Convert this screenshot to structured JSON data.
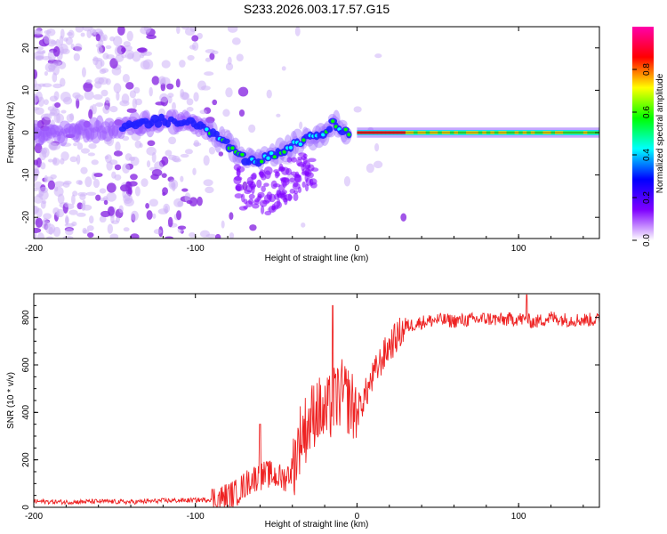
{
  "title": "S233.2026.003.17.57.G15",
  "chart_data": [
    {
      "type": "heatmap",
      "name": "spectrogram",
      "xlabel": "Height of straight line (km)",
      "ylabel": "Frequency (Hz)",
      "xlim": [
        -200,
        150
      ],
      "ylim": [
        -25,
        25
      ],
      "x_ticks": [
        -200,
        -100,
        0,
        100
      ],
      "y_ticks": [
        -20,
        -10,
        0,
        10,
        20
      ],
      "colorbar": {
        "label": "Normalized spectral amplitude",
        "range": [
          0,
          1
        ],
        "ticks": [
          "0.0",
          "0.2",
          "0.4",
          "0.6",
          "0.8"
        ],
        "colormap": [
          "#ffffff",
          "#7f00ff",
          "#0000ff",
          "#00ffff",
          "#00ff00",
          "#ffff00",
          "#ff0000",
          "#ff00aa"
        ]
      },
      "ridge": {
        "description_points_x": [
          -200,
          -150,
          -120,
          -100,
          -90,
          -80,
          -70,
          -65,
          -55,
          -45,
          -35,
          -25,
          -15,
          -5,
          0,
          20,
          50,
          90,
          105,
          150
        ],
        "freq_hz": [
          0,
          1,
          3,
          2,
          0,
          -3,
          -6,
          -7,
          -6,
          -4,
          -2,
          -1,
          2,
          0,
          0,
          0,
          0,
          0,
          0,
          0
        ]
      }
    },
    {
      "type": "line",
      "name": "snr",
      "xlabel": "Height of straight line (km)",
      "ylabel": "SNR (10 * v/v)",
      "xlim": [
        -200,
        150
      ],
      "ylim": [
        0,
        900
      ],
      "x_ticks": [
        -200,
        -100,
        0,
        100
      ],
      "y_ticks": [
        0,
        200,
        400,
        600,
        800
      ],
      "color": "#ee2222",
      "x": [
        -200,
        -180,
        -160,
        -140,
        -120,
        -100,
        -85,
        -75,
        -65,
        -55,
        -45,
        -40,
        -35,
        -30,
        -25,
        -20,
        -15,
        -10,
        -5,
        0,
        5,
        10,
        15,
        20,
        25,
        30,
        40,
        50,
        60,
        70,
        80,
        90,
        100,
        110,
        120,
        130,
        140,
        150
      ],
      "values": [
        25,
        22,
        25,
        22,
        28,
        30,
        35,
        60,
        120,
        140,
        120,
        160,
        300,
        350,
        420,
        380,
        440,
        480,
        450,
        400,
        470,
        550,
        620,
        680,
        720,
        760,
        780,
        790,
        785,
        790,
        795,
        790,
        795,
        780,
        800,
        790,
        790,
        790
      ],
      "noise_amplitude_by_region": [
        {
          "x_from": -200,
          "x_to": -90,
          "amplitude": 10
        },
        {
          "x_from": -90,
          "x_to": -40,
          "amplitude": 60
        },
        {
          "x_from": -40,
          "x_to": 0,
          "amplitude": 150
        },
        {
          "x_from": 0,
          "x_to": 30,
          "amplitude": 70
        },
        {
          "x_from": 30,
          "x_to": 150,
          "amplitude": 30
        }
      ],
      "spikes": [
        {
          "x": -60,
          "y": 350
        },
        {
          "x": -15,
          "y": 850
        },
        {
          "x": 105,
          "y": 895
        }
      ]
    }
  ]
}
